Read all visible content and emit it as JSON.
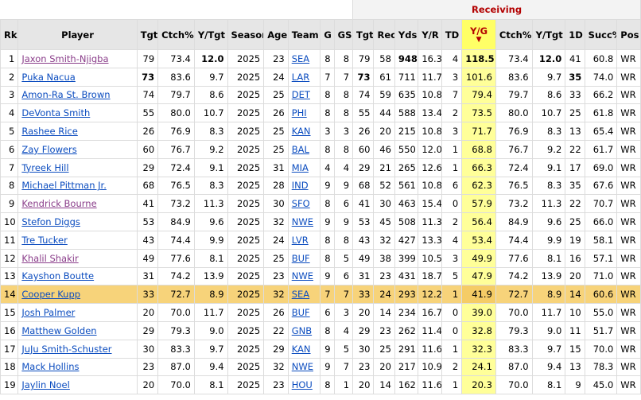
{
  "group_header": "Receiving",
  "columns": {
    "rk": "Rk",
    "player": "Player",
    "tgt": "Tgt",
    "ctch": "Ctch%",
    "ytgt": "Y/Tgt",
    "season": "Season",
    "age": "Age",
    "team": "Team",
    "g": "G",
    "gs": "GS",
    "tgt2": "Tgt",
    "rec": "Rec",
    "yds": "Yds",
    "yr": "Y/R",
    "td": "TD",
    "yg": "Y/G",
    "ctch2": "Ctch%",
    "ytgt2": "Y/Tgt",
    "first_down": "1D",
    "succ": "Succ%",
    "pos": "Pos"
  },
  "sort_arrow": "▼",
  "rows": [
    {
      "rk": "1",
      "player": "Jaxon Smith-Njigba",
      "tgt": "79",
      "ctch": "73.4",
      "ytgt": "12.0",
      "season": "2025",
      "age": "23",
      "team": "SEA",
      "g": "8",
      "gs": "8",
      "tgt2": "79",
      "rec": "58",
      "yds": "948",
      "yr": "16.3",
      "td": "4",
      "yg": "118.5",
      "ctch2": "73.4",
      "ytgt2": "12.0",
      "fd": "41",
      "succ": "60.8",
      "pos": "WR"
    },
    {
      "rk": "2",
      "player": "Puka Nacua",
      "tgt": "73",
      "ctch": "83.6",
      "ytgt": "9.7",
      "season": "2025",
      "age": "24",
      "team": "LAR",
      "g": "7",
      "gs": "7",
      "tgt2": "73",
      "rec": "61",
      "yds": "711",
      "yr": "11.7",
      "td": "3",
      "yg": "101.6",
      "ctch2": "83.6",
      "ytgt2": "9.7",
      "fd": "35",
      "succ": "74.0",
      "pos": "WR"
    },
    {
      "rk": "3",
      "player": "Amon-Ra St. Brown",
      "tgt": "74",
      "ctch": "79.7",
      "ytgt": "8.6",
      "season": "2025",
      "age": "25",
      "team": "DET",
      "g": "8",
      "gs": "8",
      "tgt2": "74",
      "rec": "59",
      "yds": "635",
      "yr": "10.8",
      "td": "7",
      "yg": "79.4",
      "ctch2": "79.7",
      "ytgt2": "8.6",
      "fd": "33",
      "succ": "66.2",
      "pos": "WR"
    },
    {
      "rk": "4",
      "player": "DeVonta Smith",
      "tgt": "55",
      "ctch": "80.0",
      "ytgt": "10.7",
      "season": "2025",
      "age": "26",
      "team": "PHI",
      "g": "8",
      "gs": "8",
      "tgt2": "55",
      "rec": "44",
      "yds": "588",
      "yr": "13.4",
      "td": "2",
      "yg": "73.5",
      "ctch2": "80.0",
      "ytgt2": "10.7",
      "fd": "25",
      "succ": "61.8",
      "pos": "WR"
    },
    {
      "rk": "5",
      "player": "Rashee Rice",
      "tgt": "26",
      "ctch": "76.9",
      "ytgt": "8.3",
      "season": "2025",
      "age": "25",
      "team": "KAN",
      "g": "3",
      "gs": "3",
      "tgt2": "26",
      "rec": "20",
      "yds": "215",
      "yr": "10.8",
      "td": "3",
      "yg": "71.7",
      "ctch2": "76.9",
      "ytgt2": "8.3",
      "fd": "13",
      "succ": "65.4",
      "pos": "WR"
    },
    {
      "rk": "6",
      "player": "Zay Flowers",
      "tgt": "60",
      "ctch": "76.7",
      "ytgt": "9.2",
      "season": "2025",
      "age": "25",
      "team": "BAL",
      "g": "8",
      "gs": "8",
      "tgt2": "60",
      "rec": "46",
      "yds": "550",
      "yr": "12.0",
      "td": "1",
      "yg": "68.8",
      "ctch2": "76.7",
      "ytgt2": "9.2",
      "fd": "22",
      "succ": "61.7",
      "pos": "WR"
    },
    {
      "rk": "7",
      "player": "Tyreek Hill",
      "tgt": "29",
      "ctch": "72.4",
      "ytgt": "9.1",
      "season": "2025",
      "age": "31",
      "team": "MIA",
      "g": "4",
      "gs": "4",
      "tgt2": "29",
      "rec": "21",
      "yds": "265",
      "yr": "12.6",
      "td": "1",
      "yg": "66.3",
      "ctch2": "72.4",
      "ytgt2": "9.1",
      "fd": "17",
      "succ": "69.0",
      "pos": "WR"
    },
    {
      "rk": "8",
      "player": "Michael Pittman Jr.",
      "tgt": "68",
      "ctch": "76.5",
      "ytgt": "8.3",
      "season": "2025",
      "age": "28",
      "team": "IND",
      "g": "9",
      "gs": "9",
      "tgt2": "68",
      "rec": "52",
      "yds": "561",
      "yr": "10.8",
      "td": "6",
      "yg": "62.3",
      "ctch2": "76.5",
      "ytgt2": "8.3",
      "fd": "35",
      "succ": "67.6",
      "pos": "WR"
    },
    {
      "rk": "9",
      "player": "Kendrick Bourne",
      "tgt": "41",
      "ctch": "73.2",
      "ytgt": "11.3",
      "season": "2025",
      "age": "30",
      "team": "SFO",
      "g": "8",
      "gs": "6",
      "tgt2": "41",
      "rec": "30",
      "yds": "463",
      "yr": "15.4",
      "td": "0",
      "yg": "57.9",
      "ctch2": "73.2",
      "ytgt2": "11.3",
      "fd": "22",
      "succ": "70.7",
      "pos": "WR"
    },
    {
      "rk": "10",
      "player": "Stefon Diggs",
      "tgt": "53",
      "ctch": "84.9",
      "ytgt": "9.6",
      "season": "2025",
      "age": "32",
      "team": "NWE",
      "g": "9",
      "gs": "9",
      "tgt2": "53",
      "rec": "45",
      "yds": "508",
      "yr": "11.3",
      "td": "2",
      "yg": "56.4",
      "ctch2": "84.9",
      "ytgt2": "9.6",
      "fd": "25",
      "succ": "66.0",
      "pos": "WR"
    },
    {
      "rk": "11",
      "player": "Tre Tucker",
      "tgt": "43",
      "ctch": "74.4",
      "ytgt": "9.9",
      "season": "2025",
      "age": "24",
      "team": "LVR",
      "g": "8",
      "gs": "8",
      "tgt2": "43",
      "rec": "32",
      "yds": "427",
      "yr": "13.3",
      "td": "4",
      "yg": "53.4",
      "ctch2": "74.4",
      "ytgt2": "9.9",
      "fd": "19",
      "succ": "58.1",
      "pos": "WR"
    },
    {
      "rk": "12",
      "player": "Khalil Shakir",
      "tgt": "49",
      "ctch": "77.6",
      "ytgt": "8.1",
      "season": "2025",
      "age": "25",
      "team": "BUF",
      "g": "8",
      "gs": "5",
      "tgt2": "49",
      "rec": "38",
      "yds": "399",
      "yr": "10.5",
      "td": "3",
      "yg": "49.9",
      "ctch2": "77.6",
      "ytgt2": "8.1",
      "fd": "16",
      "succ": "57.1",
      "pos": "WR"
    },
    {
      "rk": "13",
      "player": "Kayshon Boutte",
      "tgt": "31",
      "ctch": "74.2",
      "ytgt": "13.9",
      "season": "2025",
      "age": "23",
      "team": "NWE",
      "g": "9",
      "gs": "6",
      "tgt2": "31",
      "rec": "23",
      "yds": "431",
      "yr": "18.7",
      "td": "5",
      "yg": "47.9",
      "ctch2": "74.2",
      "ytgt2": "13.9",
      "fd": "20",
      "succ": "71.0",
      "pos": "WR"
    },
    {
      "rk": "14",
      "player": "Cooper Kupp",
      "tgt": "33",
      "ctch": "72.7",
      "ytgt": "8.9",
      "season": "2025",
      "age": "32",
      "team": "SEA",
      "g": "7",
      "gs": "7",
      "tgt2": "33",
      "rec": "24",
      "yds": "293",
      "yr": "12.2",
      "td": "1",
      "yg": "41.9",
      "ctch2": "72.7",
      "ytgt2": "8.9",
      "fd": "14",
      "succ": "60.6",
      "pos": "WR"
    },
    {
      "rk": "15",
      "player": "Josh Palmer",
      "tgt": "20",
      "ctch": "70.0",
      "ytgt": "11.7",
      "season": "2025",
      "age": "26",
      "team": "BUF",
      "g": "6",
      "gs": "3",
      "tgt2": "20",
      "rec": "14",
      "yds": "234",
      "yr": "16.7",
      "td": "0",
      "yg": "39.0",
      "ctch2": "70.0",
      "ytgt2": "11.7",
      "fd": "10",
      "succ": "55.0",
      "pos": "WR"
    },
    {
      "rk": "16",
      "player": "Matthew Golden",
      "tgt": "29",
      "ctch": "79.3",
      "ytgt": "9.0",
      "season": "2025",
      "age": "22",
      "team": "GNB",
      "g": "8",
      "gs": "4",
      "tgt2": "29",
      "rec": "23",
      "yds": "262",
      "yr": "11.4",
      "td": "0",
      "yg": "32.8",
      "ctch2": "79.3",
      "ytgt2": "9.0",
      "fd": "11",
      "succ": "51.7",
      "pos": "WR"
    },
    {
      "rk": "17",
      "player": "JuJu Smith-Schuster",
      "tgt": "30",
      "ctch": "83.3",
      "ytgt": "9.7",
      "season": "2025",
      "age": "29",
      "team": "KAN",
      "g": "9",
      "gs": "5",
      "tgt2": "30",
      "rec": "25",
      "yds": "291",
      "yr": "11.6",
      "td": "1",
      "yg": "32.3",
      "ctch2": "83.3",
      "ytgt2": "9.7",
      "fd": "15",
      "succ": "70.0",
      "pos": "WR"
    },
    {
      "rk": "18",
      "player": "Mack Hollins",
      "tgt": "23",
      "ctch": "87.0",
      "ytgt": "9.4",
      "season": "2025",
      "age": "32",
      "team": "NWE",
      "g": "9",
      "gs": "7",
      "tgt2": "23",
      "rec": "20",
      "yds": "217",
      "yr": "10.9",
      "td": "2",
      "yg": "24.1",
      "ctch2": "87.0",
      "ytgt2": "9.4",
      "fd": "13",
      "succ": "78.3",
      "pos": "WR"
    },
    {
      "rk": "19",
      "player": "Jaylin Noel",
      "tgt": "20",
      "ctch": "70.0",
      "ytgt": "8.1",
      "season": "2025",
      "age": "23",
      "team": "HOU",
      "g": "8",
      "gs": "1",
      "tgt2": "20",
      "rec": "14",
      "yds": "162",
      "yr": "11.6",
      "td": "1",
      "yg": "20.3",
      "ctch2": "70.0",
      "ytgt2": "8.1",
      "fd": "9",
      "succ": "45.0",
      "pos": "WR"
    }
  ],
  "highlight_row": "14",
  "visited_players": [
    "Jaxon Smith-Njigba",
    "Kendrick Bourne",
    "Khalil Shakir"
  ],
  "bold_cells": [
    {
      "row": "1",
      "col": "ytgt"
    },
    {
      "row": "1",
      "col": "yds"
    },
    {
      "row": "1",
      "col": "yg"
    },
    {
      "row": "1",
      "col": "ytgt2"
    },
    {
      "row": "2",
      "col": "tgt"
    },
    {
      "row": "2",
      "col": "tgt2"
    },
    {
      "row": "2",
      "col": "fd"
    }
  ]
}
